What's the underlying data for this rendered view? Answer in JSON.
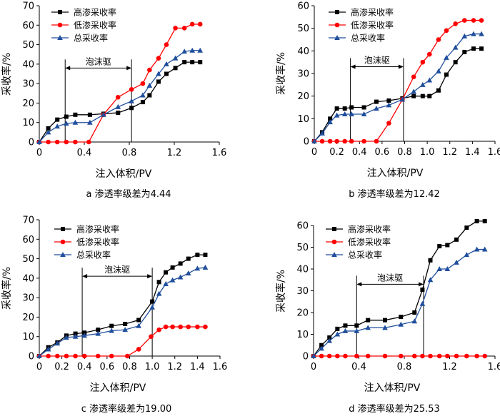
{
  "chart_data": [
    {
      "type": "line",
      "caption": "a  渗透率级差为4.44",
      "xlabel": "注入体积/PV",
      "ylabel": "采收率/%",
      "xlim": [
        0,
        1.6
      ],
      "ylim": [
        0,
        70
      ],
      "xticks": [
        0,
        0.4,
        0.8,
        1.2,
        1.6
      ],
      "xtick_labels": [
        "0",
        "0.4",
        "0.8",
        "1.2",
        "1.6"
      ],
      "yticks": [
        0,
        10,
        20,
        30,
        40,
        50,
        60,
        70
      ],
      "ytick_labels": [
        "0",
        "10",
        "20",
        "30",
        "40",
        "50",
        "60",
        "70"
      ],
      "legend_position": "top-left",
      "annotation": {
        "text": "泡沫驱",
        "x_start": 0.23,
        "x_end": 0.82,
        "y": 38
      },
      "series": [
        {
          "name": "高渗采收率",
          "color": "#000000",
          "marker": "square",
          "x": [
            0,
            0.08,
            0.16,
            0.24,
            0.32,
            0.45,
            0.57,
            0.7,
            0.82,
            0.92,
            0.98,
            1.06,
            1.13,
            1.21,
            1.29,
            1.36,
            1.43
          ],
          "y": [
            0,
            7,
            11.5,
            13,
            14,
            14,
            14.5,
            15,
            17.5,
            20.5,
            24,
            31,
            35,
            38,
            41,
            41,
            41
          ]
        },
        {
          "name": "低渗采收率",
          "color": "#ff0000",
          "marker": "circle",
          "x": [
            0,
            0.08,
            0.16,
            0.24,
            0.32,
            0.44,
            0.57,
            0.7,
            0.82,
            0.92,
            0.98,
            1.06,
            1.13,
            1.21,
            1.29,
            1.36,
            1.43
          ],
          "y": [
            0,
            0,
            0,
            0,
            0,
            0,
            14,
            23,
            27,
            30,
            37,
            43,
            50,
            58.5,
            58.5,
            60.5,
            60.5
          ]
        },
        {
          "name": "总采收率",
          "color": "#1f4e9c",
          "marker": "triangle",
          "x": [
            0,
            0.08,
            0.16,
            0.24,
            0.32,
            0.45,
            0.57,
            0.7,
            0.82,
            0.92,
            0.98,
            1.06,
            1.13,
            1.21,
            1.29,
            1.36,
            1.43
          ],
          "y": [
            0,
            5,
            8,
            9.5,
            10,
            10,
            14,
            18,
            21,
            24,
            29,
            35,
            40,
            43,
            46.5,
            47,
            47
          ]
        }
      ]
    },
    {
      "type": "line",
      "caption": "b  渗透率级差为12.42",
      "xlabel": "注入体积/PV",
      "ylabel": "采收率/%",
      "xlim": [
        0,
        1.6
      ],
      "ylim": [
        0,
        60
      ],
      "xticks": [
        0,
        0.2,
        0.4,
        0.6,
        0.8,
        1.0,
        1.2,
        1.4,
        1.6
      ],
      "xtick_labels": [
        "0",
        "0.2",
        "0.4",
        "0.6",
        "0.8",
        "1.0",
        "1.2",
        "1.4",
        "1.6"
      ],
      "yticks": [
        0,
        10,
        20,
        30,
        40,
        50,
        60
      ],
      "ytick_labels": [
        "0",
        "10",
        "20",
        "30",
        "40",
        "50",
        "60"
      ],
      "legend_position": "top-left",
      "annotation": {
        "text": "泡沫驱",
        "x_start": 0.32,
        "x_end": 0.79,
        "y": 33
      },
      "series": [
        {
          "name": "高渗采收率",
          "color": "#000000",
          "marker": "square",
          "x": [
            0,
            0.07,
            0.14,
            0.2,
            0.27,
            0.33,
            0.44,
            0.55,
            0.66,
            0.78,
            0.88,
            0.96,
            1.02,
            1.1,
            1.17,
            1.25,
            1.33,
            1.41,
            1.48
          ],
          "y": [
            0,
            4,
            10,
            14.5,
            14.5,
            15,
            15,
            17.5,
            18,
            19,
            20,
            20,
            20,
            22.5,
            29.5,
            35,
            39.5,
            41,
            41
          ]
        },
        {
          "name": "低渗采收率",
          "color": "#ff0000",
          "marker": "circle",
          "x": [
            0,
            0.07,
            0.14,
            0.2,
            0.27,
            0.33,
            0.44,
            0.55,
            0.66,
            0.78,
            0.88,
            0.96,
            1.02,
            1.1,
            1.17,
            1.25,
            1.33,
            1.41,
            1.48
          ],
          "y": [
            0,
            0,
            0,
            0,
            0,
            0,
            0,
            0,
            8,
            18.5,
            28.5,
            35,
            38.5,
            45,
            49,
            52,
            53.5,
            53.5,
            53.5
          ]
        },
        {
          "name": "总采收率",
          "color": "#1f4e9c",
          "marker": "triangle",
          "x": [
            0,
            0.07,
            0.14,
            0.2,
            0.27,
            0.33,
            0.44,
            0.55,
            0.66,
            0.78,
            0.88,
            0.96,
            1.02,
            1.1,
            1.17,
            1.25,
            1.33,
            1.41,
            1.48
          ],
          "y": [
            0,
            3.5,
            8.5,
            11.5,
            12,
            12,
            12,
            14.5,
            16,
            18.5,
            22,
            25,
            27,
            31,
            37,
            41.5,
            46.5,
            47.5,
            47.5
          ]
        }
      ]
    },
    {
      "type": "line",
      "caption": "c  渗透率级差为19.00",
      "xlabel": "注入体积/PV",
      "ylabel": "采收率/%",
      "xlim": [
        0,
        1.6
      ],
      "ylim": [
        0,
        70
      ],
      "xticks": [
        0,
        0.2,
        0.4,
        0.6,
        0.8,
        1.0,
        1.2,
        1.4,
        1.6
      ],
      "xtick_labels": [
        "0",
        "0.2",
        "0.4",
        "0.6",
        "0.8",
        "1.0",
        "1.2",
        "1.4",
        "1.6"
      ],
      "yticks": [
        0,
        10,
        20,
        30,
        40,
        50,
        60,
        70
      ],
      "ytick_labels": [
        "0",
        "10",
        "20",
        "30",
        "40",
        "50",
        "60",
        "70"
      ],
      "legend_position": "top-left",
      "annotation": {
        "text": "泡沫驱",
        "x_start": 0.38,
        "x_end": 1.0,
        "y": 41
      },
      "series": [
        {
          "name": "高渗采收率",
          "color": "#000000",
          "marker": "square",
          "x": [
            0,
            0.08,
            0.16,
            0.24,
            0.32,
            0.4,
            0.52,
            0.64,
            0.76,
            0.88,
            1.0,
            1.06,
            1.12,
            1.18,
            1.25,
            1.32,
            1.4,
            1.47
          ],
          "y": [
            0,
            4.5,
            7,
            10.5,
            11.5,
            12,
            13.5,
            15.5,
            16.5,
            18.5,
            28,
            38,
            43,
            45.5,
            47.5,
            50,
            52,
            52
          ]
        },
        {
          "name": "低渗采收率",
          "color": "#ff0000",
          "marker": "circle",
          "x": [
            0,
            0.08,
            0.16,
            0.24,
            0.32,
            0.4,
            0.52,
            0.64,
            0.78,
            0.88,
            0.99,
            1.06,
            1.12,
            1.18,
            1.25,
            1.32,
            1.4,
            1.47
          ],
          "y": [
            0,
            0,
            0,
            0,
            0,
            0,
            0,
            0,
            0,
            3.5,
            10,
            13.5,
            15,
            15,
            15,
            15,
            15,
            15
          ]
        },
        {
          "name": "总采收率",
          "color": "#1f4e9c",
          "marker": "triangle",
          "x": [
            0,
            0.08,
            0.16,
            0.24,
            0.32,
            0.4,
            0.52,
            0.64,
            0.76,
            0.88,
            1.0,
            1.06,
            1.12,
            1.18,
            1.25,
            1.32,
            1.4,
            1.47
          ],
          "y": [
            0,
            3.5,
            6.5,
            9.5,
            10,
            10.5,
            11.5,
            13,
            13.5,
            15.5,
            25,
            32,
            37,
            39,
            40.5,
            42.5,
            45,
            45.5
          ]
        }
      ]
    },
    {
      "type": "line",
      "caption": "d 渗透率级差为25.53",
      "xlabel": "注入体积/PV",
      "ylabel": "采收率/%",
      "xlim": [
        0,
        1.6
      ],
      "ylim": [
        0,
        60
      ],
      "xticks": [
        0,
        0.4,
        0.8,
        1.2,
        1.6
      ],
      "xtick_labels": [
        "0",
        "0.4",
        "0.8",
        "1.2",
        "1.6"
      ],
      "yticks": [
        0,
        10,
        20,
        30,
        40,
        50,
        60
      ],
      "ytick_labels": [
        "0",
        "10",
        "20",
        "30",
        "40",
        "50",
        "60"
      ],
      "legend_position": "top-left",
      "annotation": {
        "text": "泡沫驱",
        "x_start": 0.38,
        "x_end": 0.97,
        "y": 33
      },
      "series": [
        {
          "name": "高渗采收率",
          "color": "#000000",
          "marker": "square",
          "x": [
            0,
            0.07,
            0.14,
            0.21,
            0.28,
            0.38,
            0.48,
            0.63,
            0.77,
            0.89,
            0.96,
            1.03,
            1.11,
            1.18,
            1.26,
            1.35,
            1.44,
            1.51
          ],
          "y": [
            0,
            5,
            8.5,
            12.5,
            14,
            14,
            16.5,
            16.5,
            18,
            20,
            30.5,
            44,
            50.5,
            51,
            53.5,
            59,
            62,
            62
          ]
        },
        {
          "name": "低渗采收率",
          "color": "#ff0000",
          "marker": "circle",
          "x": [
            0,
            0.07,
            0.14,
            0.21,
            0.28,
            0.38,
            0.48,
            0.63,
            0.77,
            0.89,
            0.96,
            1.03,
            1.11,
            1.18,
            1.26,
            1.35,
            1.44,
            1.51
          ],
          "y": [
            0,
            0,
            0,
            0,
            0,
            0,
            0,
            0,
            0,
            0,
            0,
            0,
            0,
            0,
            0,
            0,
            0,
            0
          ]
        },
        {
          "name": "总采收率",
          "color": "#1f4e9c",
          "marker": "triangle",
          "x": [
            0,
            0.07,
            0.14,
            0.21,
            0.28,
            0.38,
            0.48,
            0.63,
            0.77,
            0.89,
            0.96,
            1.03,
            1.11,
            1.18,
            1.26,
            1.35,
            1.44,
            1.51
          ],
          "y": [
            0,
            3.5,
            7,
            10,
            11.5,
            11.5,
            13,
            13,
            14.5,
            16,
            24,
            35,
            40,
            40,
            43,
            46.5,
            49,
            49
          ]
        }
      ]
    }
  ]
}
